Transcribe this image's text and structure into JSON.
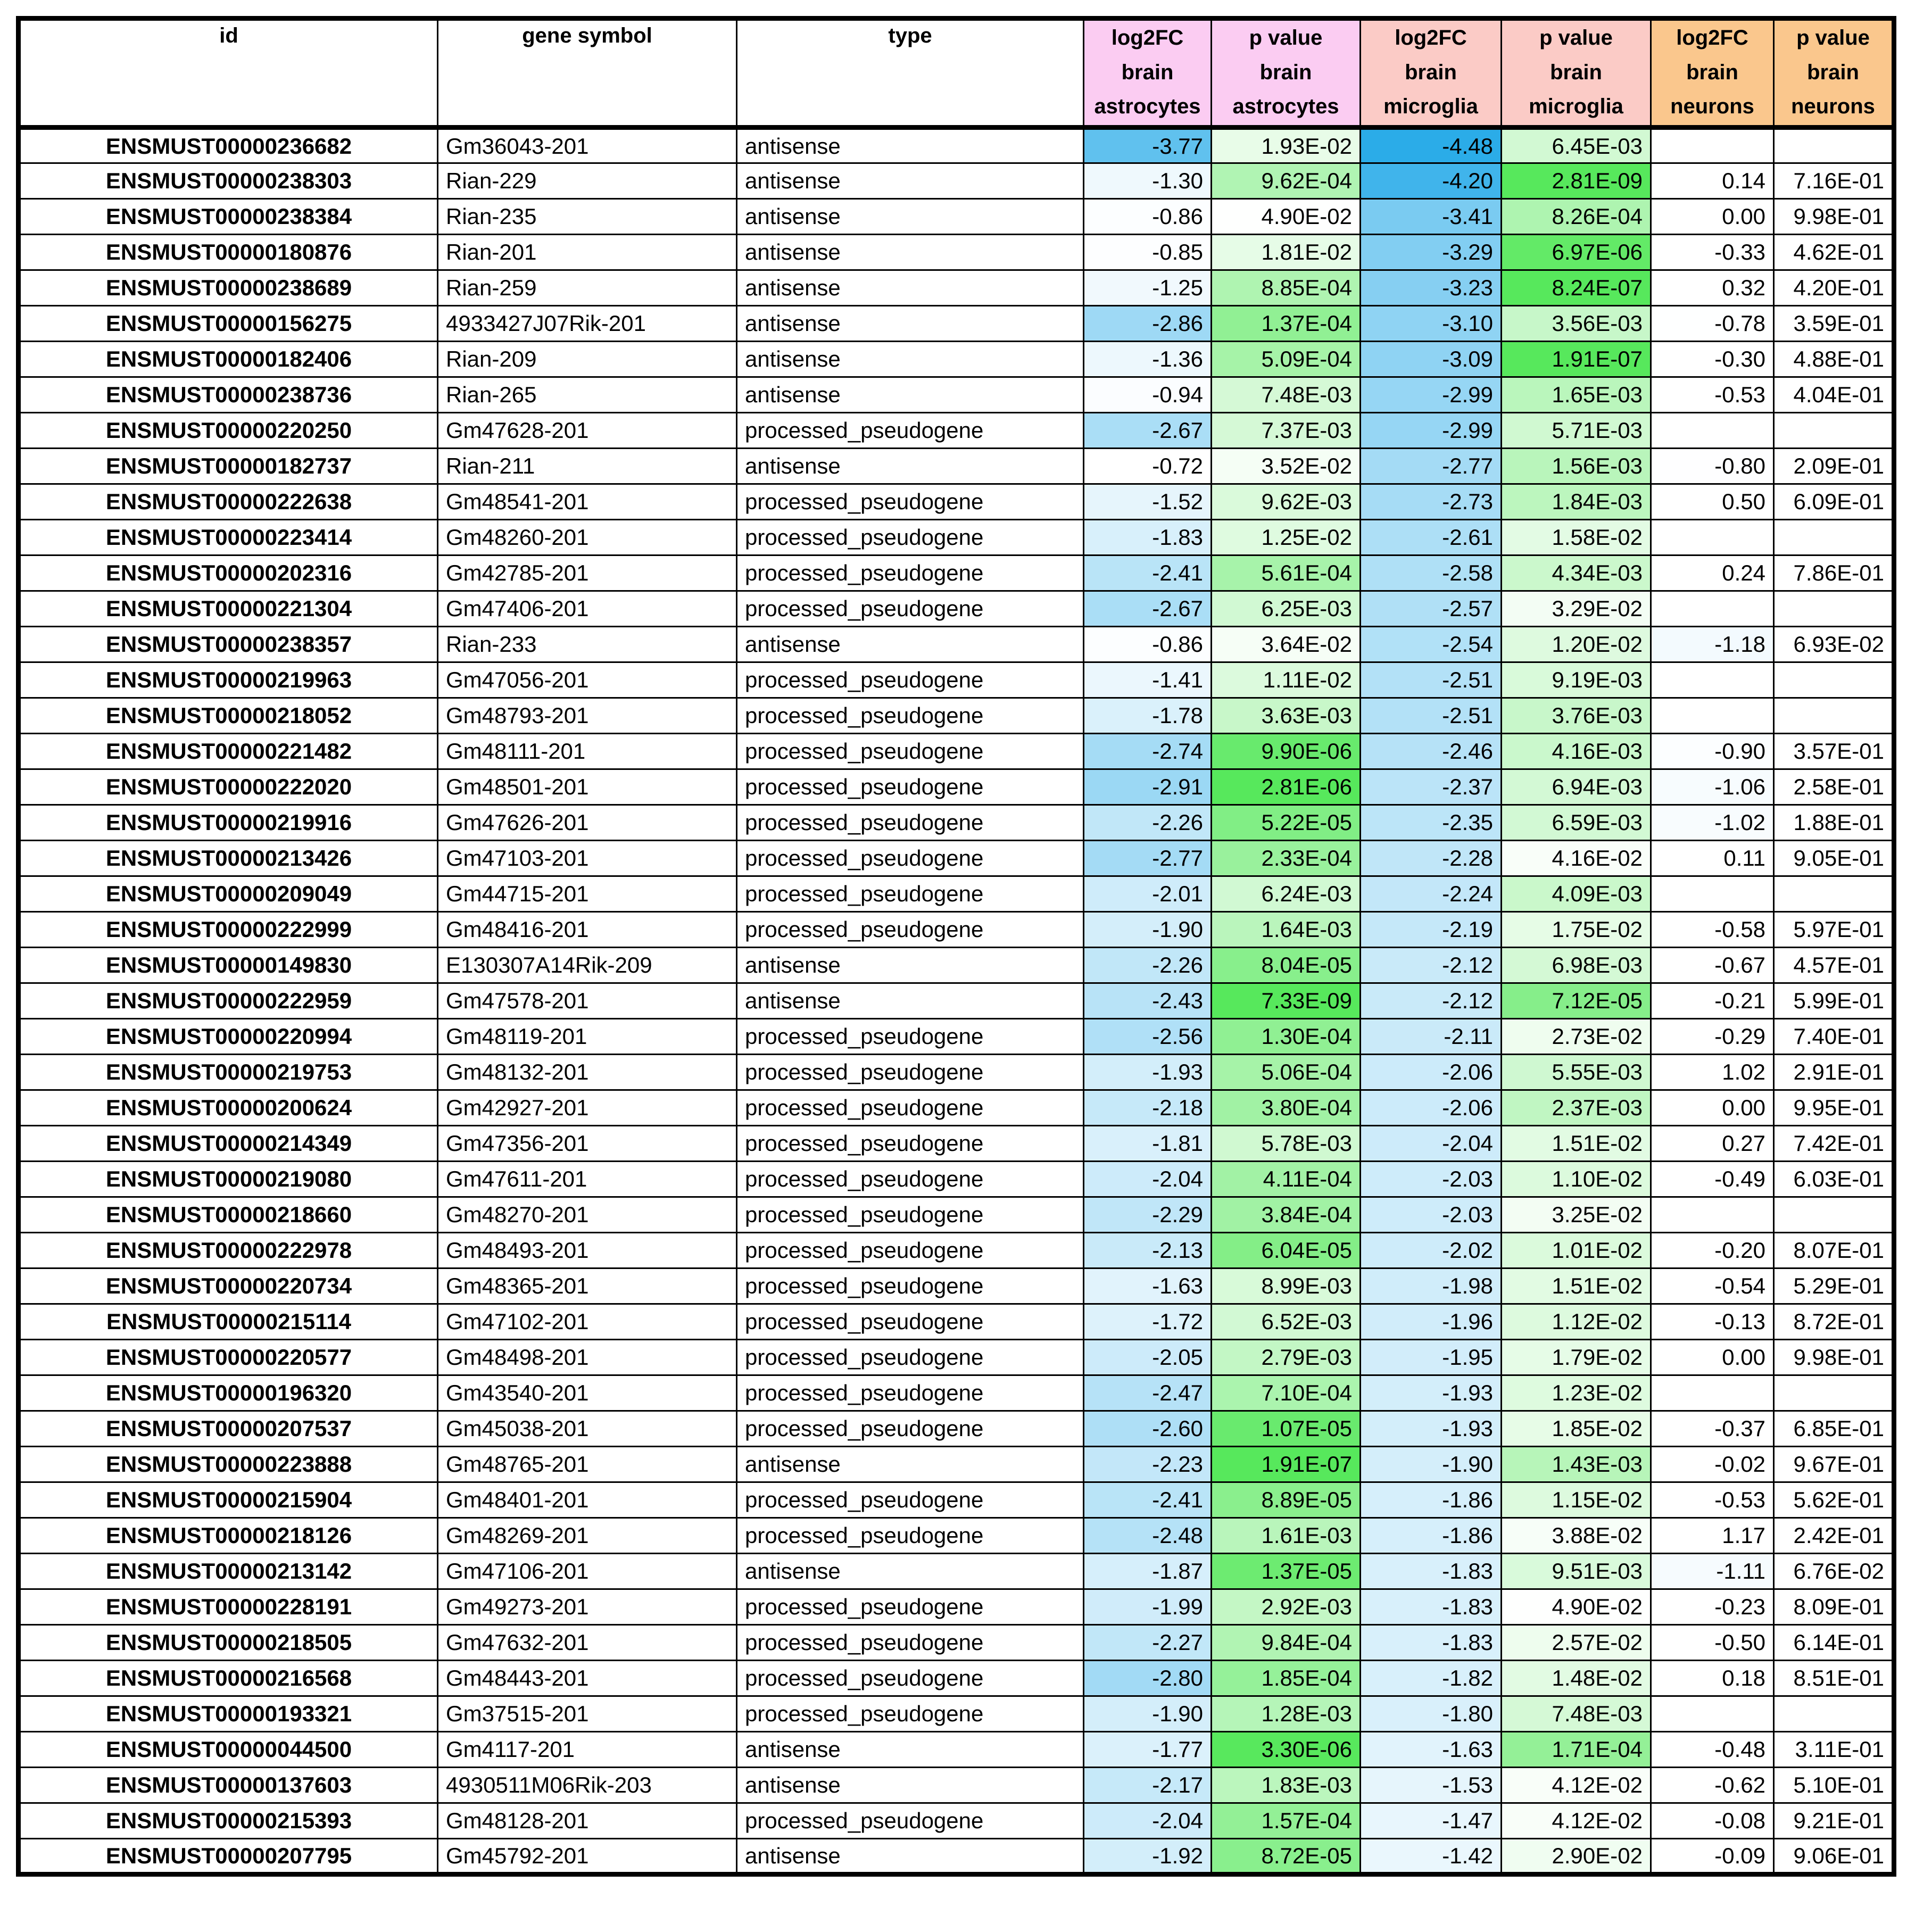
{
  "colors": {
    "background": "#FFFFFF",
    "grid": "#000000",
    "header_astrocytes": "#FBCCF2",
    "header_microglia": "#FBCBC6",
    "header_neurons": "#FAC78D",
    "log2fc_scale_strong_blue": "#29ABE8",
    "pvalue_scale_strong_green": "#57E85C"
  },
  "header": {
    "id": "id",
    "gene": "gene symbol",
    "type": "type",
    "groups": [
      {
        "metric": "log2FC",
        "tissue": "brain",
        "cell": "astrocytes"
      },
      {
        "metric": "p value",
        "tissue": "brain",
        "cell": "astrocytes"
      },
      {
        "metric": "log2FC",
        "tissue": "brain",
        "cell": "microglia"
      },
      {
        "metric": "p value",
        "tissue": "brain",
        "cell": "microglia"
      },
      {
        "metric": "log2FC",
        "tissue": "brain",
        "cell": "neurons"
      },
      {
        "metric": "p value",
        "tissue": "brain",
        "cell": "neurons"
      }
    ]
  },
  "column_keys": [
    "id",
    "gene",
    "type",
    "log2fc-astrocytes",
    "pvalue-astrocytes",
    "log2fc-microglia",
    "pvalue-microglia",
    "log2fc-neurons",
    "pvalue-neurons"
  ],
  "rows": [
    [
      "ENSMUST00000236682",
      "Gm36043-201",
      "antisense",
      -3.77,
      "1.93E-02",
      -4.48,
      "6.45E-03",
      null,
      null
    ],
    [
      "ENSMUST00000238303",
      "Rian-229",
      "antisense",
      -1.3,
      "9.62E-04",
      -4.2,
      "2.81E-09",
      0.14,
      "7.16E-01"
    ],
    [
      "ENSMUST00000238384",
      "Rian-235",
      "antisense",
      -0.86,
      "4.90E-02",
      -3.41,
      "8.26E-04",
      0.0,
      "9.98E-01"
    ],
    [
      "ENSMUST00000180876",
      "Rian-201",
      "antisense",
      -0.85,
      "1.81E-02",
      -3.29,
      "6.97E-06",
      -0.33,
      "4.62E-01"
    ],
    [
      "ENSMUST00000238689",
      "Rian-259",
      "antisense",
      -1.25,
      "8.85E-04",
      -3.23,
      "8.24E-07",
      0.32,
      "4.20E-01"
    ],
    [
      "ENSMUST00000156275",
      "4933427J07Rik-201",
      "antisense",
      -2.86,
      "1.37E-04",
      -3.1,
      "3.56E-03",
      -0.78,
      "3.59E-01"
    ],
    [
      "ENSMUST00000182406",
      "Rian-209",
      "antisense",
      -1.36,
      "5.09E-04",
      -3.09,
      "1.91E-07",
      -0.3,
      "4.88E-01"
    ],
    [
      "ENSMUST00000238736",
      "Rian-265",
      "antisense",
      -0.94,
      "7.48E-03",
      -2.99,
      "1.65E-03",
      -0.53,
      "4.04E-01"
    ],
    [
      "ENSMUST00000220250",
      "Gm47628-201",
      "processed_pseudogene",
      -2.67,
      "7.37E-03",
      -2.99,
      "5.71E-03",
      null,
      null
    ],
    [
      "ENSMUST00000182737",
      "Rian-211",
      "antisense",
      -0.72,
      "3.52E-02",
      -2.77,
      "1.56E-03",
      -0.8,
      "2.09E-01"
    ],
    [
      "ENSMUST00000222638",
      "Gm48541-201",
      "processed_pseudogene",
      -1.52,
      "9.62E-03",
      -2.73,
      "1.84E-03",
      0.5,
      "6.09E-01"
    ],
    [
      "ENSMUST00000223414",
      "Gm48260-201",
      "processed_pseudogene",
      -1.83,
      "1.25E-02",
      -2.61,
      "1.58E-02",
      null,
      null
    ],
    [
      "ENSMUST00000202316",
      "Gm42785-201",
      "processed_pseudogene",
      -2.41,
      "5.61E-04",
      -2.58,
      "4.34E-03",
      0.24,
      "7.86E-01"
    ],
    [
      "ENSMUST00000221304",
      "Gm47406-201",
      "processed_pseudogene",
      -2.67,
      "6.25E-03",
      -2.57,
      "3.29E-02",
      null,
      null
    ],
    [
      "ENSMUST00000238357",
      "Rian-233",
      "antisense",
      -0.86,
      "3.64E-02",
      -2.54,
      "1.20E-02",
      -1.18,
      "6.93E-02"
    ],
    [
      "ENSMUST00000219963",
      "Gm47056-201",
      "processed_pseudogene",
      -1.41,
      "1.11E-02",
      -2.51,
      "9.19E-03",
      null,
      null
    ],
    [
      "ENSMUST00000218052",
      "Gm48793-201",
      "processed_pseudogene",
      -1.78,
      "3.63E-03",
      -2.51,
      "3.76E-03",
      null,
      null
    ],
    [
      "ENSMUST00000221482",
      "Gm48111-201",
      "processed_pseudogene",
      -2.74,
      "9.90E-06",
      -2.46,
      "4.16E-03",
      -0.9,
      "3.57E-01"
    ],
    [
      "ENSMUST00000222020",
      "Gm48501-201",
      "processed_pseudogene",
      -2.91,
      "2.81E-06",
      -2.37,
      "6.94E-03",
      -1.06,
      "2.58E-01"
    ],
    [
      "ENSMUST00000219916",
      "Gm47626-201",
      "processed_pseudogene",
      -2.26,
      "5.22E-05",
      -2.35,
      "6.59E-03",
      -1.02,
      "1.88E-01"
    ],
    [
      "ENSMUST00000213426",
      "Gm47103-201",
      "processed_pseudogene",
      -2.77,
      "2.33E-04",
      -2.28,
      "4.16E-02",
      0.11,
      "9.05E-01"
    ],
    [
      "ENSMUST00000209049",
      "Gm44715-201",
      "processed_pseudogene",
      -2.01,
      "6.24E-03",
      -2.24,
      "4.09E-03",
      null,
      null
    ],
    [
      "ENSMUST00000222999",
      "Gm48416-201",
      "processed_pseudogene",
      -1.9,
      "1.64E-03",
      -2.19,
      "1.75E-02",
      -0.58,
      "5.97E-01"
    ],
    [
      "ENSMUST00000149830",
      "E130307A14Rik-209",
      "antisense",
      -2.26,
      "8.04E-05",
      -2.12,
      "6.98E-03",
      -0.67,
      "4.57E-01"
    ],
    [
      "ENSMUST00000222959",
      "Gm47578-201",
      "antisense",
      -2.43,
      "7.33E-09",
      -2.12,
      "7.12E-05",
      -0.21,
      "5.99E-01"
    ],
    [
      "ENSMUST00000220994",
      "Gm48119-201",
      "processed_pseudogene",
      -2.56,
      "1.30E-04",
      -2.11,
      "2.73E-02",
      -0.29,
      "7.40E-01"
    ],
    [
      "ENSMUST00000219753",
      "Gm48132-201",
      "processed_pseudogene",
      -1.93,
      "5.06E-04",
      -2.06,
      "5.55E-03",
      1.02,
      "2.91E-01"
    ],
    [
      "ENSMUST00000200624",
      "Gm42927-201",
      "processed_pseudogene",
      -2.18,
      "3.80E-04",
      -2.06,
      "2.37E-03",
      0.0,
      "9.95E-01"
    ],
    [
      "ENSMUST00000214349",
      "Gm47356-201",
      "processed_pseudogene",
      -1.81,
      "5.78E-03",
      -2.04,
      "1.51E-02",
      0.27,
      "7.42E-01"
    ],
    [
      "ENSMUST00000219080",
      "Gm47611-201",
      "processed_pseudogene",
      -2.04,
      "4.11E-04",
      -2.03,
      "1.10E-02",
      -0.49,
      "6.03E-01"
    ],
    [
      "ENSMUST00000218660",
      "Gm48270-201",
      "processed_pseudogene",
      -2.29,
      "3.84E-04",
      -2.03,
      "3.25E-02",
      null,
      null
    ],
    [
      "ENSMUST00000222978",
      "Gm48493-201",
      "processed_pseudogene",
      -2.13,
      "6.04E-05",
      -2.02,
      "1.01E-02",
      -0.2,
      "8.07E-01"
    ],
    [
      "ENSMUST00000220734",
      "Gm48365-201",
      "processed_pseudogene",
      -1.63,
      "8.99E-03",
      -1.98,
      "1.51E-02",
      -0.54,
      "5.29E-01"
    ],
    [
      "ENSMUST00000215114",
      "Gm47102-201",
      "processed_pseudogene",
      -1.72,
      "6.52E-03",
      -1.96,
      "1.12E-02",
      -0.13,
      "8.72E-01"
    ],
    [
      "ENSMUST00000220577",
      "Gm48498-201",
      "processed_pseudogene",
      -2.05,
      "2.79E-03",
      -1.95,
      "1.79E-02",
      0.0,
      "9.98E-01"
    ],
    [
      "ENSMUST00000196320",
      "Gm43540-201",
      "processed_pseudogene",
      -2.47,
      "7.10E-04",
      -1.93,
      "1.23E-02",
      null,
      null
    ],
    [
      "ENSMUST00000207537",
      "Gm45038-201",
      "processed_pseudogene",
      -2.6,
      "1.07E-05",
      -1.93,
      "1.85E-02",
      -0.37,
      "6.85E-01"
    ],
    [
      "ENSMUST00000223888",
      "Gm48765-201",
      "antisense",
      -2.23,
      "1.91E-07",
      -1.9,
      "1.43E-03",
      -0.02,
      "9.67E-01"
    ],
    [
      "ENSMUST00000215904",
      "Gm48401-201",
      "processed_pseudogene",
      -2.41,
      "8.89E-05",
      -1.86,
      "1.15E-02",
      -0.53,
      "5.62E-01"
    ],
    [
      "ENSMUST00000218126",
      "Gm48269-201",
      "processed_pseudogene",
      -2.48,
      "1.61E-03",
      -1.86,
      "3.88E-02",
      1.17,
      "2.42E-01"
    ],
    [
      "ENSMUST00000213142",
      "Gm47106-201",
      "antisense",
      -1.87,
      "1.37E-05",
      -1.83,
      "9.51E-03",
      -1.11,
      "6.76E-02"
    ],
    [
      "ENSMUST00000228191",
      "Gm49273-201",
      "processed_pseudogene",
      -1.99,
      "2.92E-03",
      -1.83,
      "4.90E-02",
      -0.23,
      "8.09E-01"
    ],
    [
      "ENSMUST00000218505",
      "Gm47632-201",
      "processed_pseudogene",
      -2.27,
      "9.84E-04",
      -1.83,
      "2.57E-02",
      -0.5,
      "6.14E-01"
    ],
    [
      "ENSMUST00000216568",
      "Gm48443-201",
      "processed_pseudogene",
      -2.8,
      "1.85E-04",
      -1.82,
      "1.48E-02",
      0.18,
      "8.51E-01"
    ],
    [
      "ENSMUST00000193321",
      "Gm37515-201",
      "processed_pseudogene",
      -1.9,
      "1.28E-03",
      -1.8,
      "7.48E-03",
      null,
      null
    ],
    [
      "ENSMUST00000044500",
      "Gm4117-201",
      "antisense",
      -1.77,
      "3.30E-06",
      -1.63,
      "1.71E-04",
      -0.48,
      "3.11E-01"
    ],
    [
      "ENSMUST00000137603",
      "4930511M06Rik-203",
      "antisense",
      -2.17,
      "1.83E-03",
      -1.53,
      "4.12E-02",
      -0.62,
      "5.10E-01"
    ],
    [
      "ENSMUST00000215393",
      "Gm48128-201",
      "processed_pseudogene",
      -2.04,
      "1.57E-04",
      -1.47,
      "4.12E-02",
      -0.08,
      "9.21E-01"
    ],
    [
      "ENSMUST00000207795",
      "Gm45792-201",
      "antisense",
      -1.92,
      "8.72E-05",
      -1.42,
      "2.90E-02",
      -0.09,
      "9.06E-01"
    ]
  ]
}
